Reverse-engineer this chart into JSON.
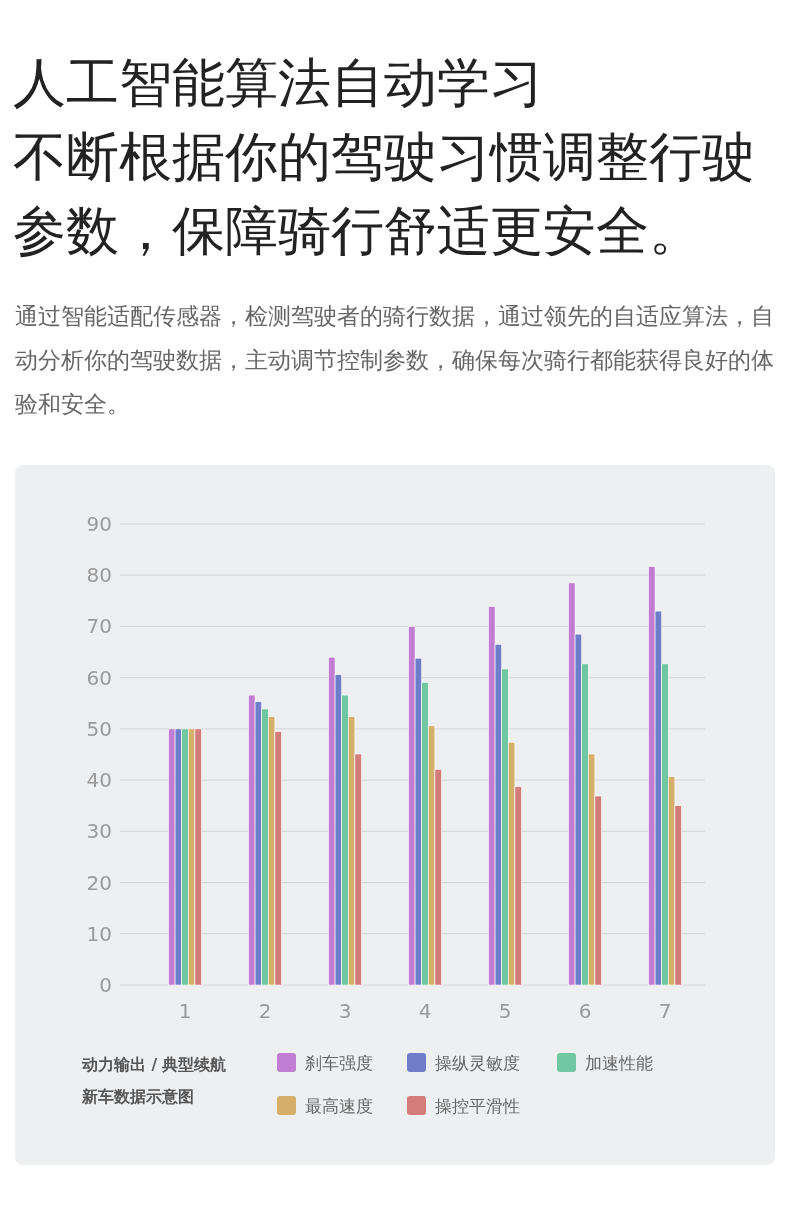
{
  "chart_data": {
    "type": "bar",
    "title": "人工智能算法自动学习",
    "subtitle": "不断根据你的驾驶习惯调整行驶参数，保障骑行舒适更安全。",
    "annotations": [
      "通过智能适配传感器，检测驾驶者的骑行数据，通过领先的自适应算法，自动分析你的驾驶数据，主动调节控制参数，确保每次骑行都能获得良好的体验和安全。",
      "动力输出 / 典型续航",
      "新车数据示意图"
    ],
    "categories": [
      "1",
      "2",
      "3",
      "4",
      "5",
      "6",
      "7"
    ],
    "series": [
      {
        "name": "刹车强度",
        "color": "#c07dd2",
        "values": [
          50,
          56.6,
          64,
          70,
          73.9,
          78.5,
          81.7
        ]
      },
      {
        "name": "操纵灵敏度",
        "color": "#6e7cca",
        "values": [
          50,
          55.3,
          60.6,
          63.8,
          66.5,
          68.5,
          73
        ]
      },
      {
        "name": "加速性能",
        "color": "#72c7a3",
        "values": [
          50,
          53.9,
          56.6,
          59.1,
          61.7,
          62.7,
          62.7
        ]
      },
      {
        "name": "最高速度",
        "color": "#d6b06a",
        "values": [
          50,
          52.4,
          52.4,
          50.6,
          47.4,
          45.1,
          40.7
        ]
      },
      {
        "name": "操控平滑性",
        "color": "#d47c7c",
        "values": [
          50,
          49.5,
          45.1,
          42.1,
          38.7,
          36.9,
          35
        ]
      }
    ],
    "ylim": [
      0,
      90
    ],
    "yticks": [
      0,
      10,
      20,
      30,
      40,
      50,
      60,
      70,
      80,
      90
    ],
    "grid": "y",
    "legend": "bottom"
  }
}
